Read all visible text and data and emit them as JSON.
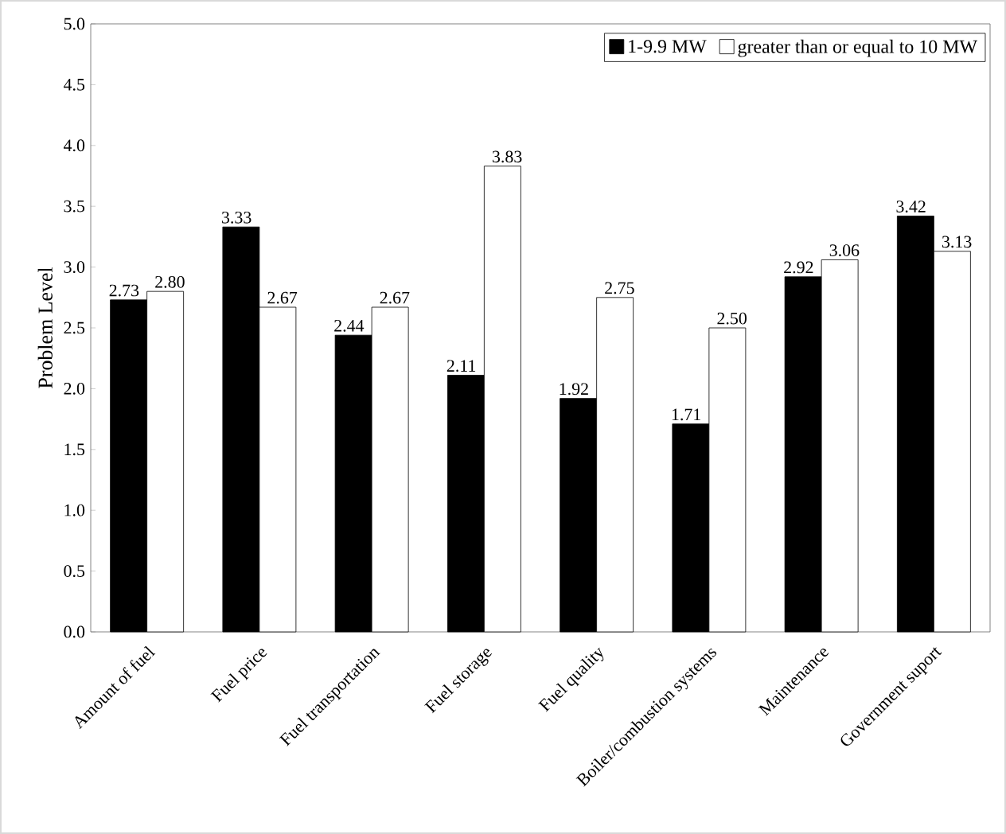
{
  "chart_data": {
    "type": "bar",
    "ylabel": "Problem Level",
    "categories": [
      "Amount of fuel",
      "Fuel price",
      "Fuel transportation",
      "Fuel storage",
      "Fuel quality",
      "Boiler/combustion systems",
      "Maintenance",
      "Government suport"
    ],
    "series": [
      {
        "name": "1-9.9 MW",
        "color": "#000000",
        "values": [
          2.73,
          3.33,
          2.44,
          2.11,
          1.92,
          1.71,
          2.92,
          3.42
        ],
        "value_labels": [
          "2.73",
          "3.33",
          "2.44",
          "2.11",
          "1.92",
          "1.71",
          "2.92",
          "3.42"
        ]
      },
      {
        "name": "greater than or equal to 10 MW",
        "color": "#ffffff",
        "values": [
          2.8,
          2.67,
          2.67,
          3.83,
          2.75,
          2.5,
          3.06,
          3.13
        ],
        "value_labels": [
          "2.80",
          "2.67",
          "2.67",
          "3.83",
          "2.75",
          "2.50",
          "3.06",
          "3.13"
        ]
      }
    ],
    "ylim": [
      0,
      5
    ],
    "yticks": [
      {
        "value": 0,
        "label": "0.0"
      },
      {
        "value": 0.5,
        "label": "0.5"
      },
      {
        "value": 1,
        "label": "1.0"
      },
      {
        "value": 1.5,
        "label": "1.5"
      },
      {
        "value": 2,
        "label": "2.0"
      },
      {
        "value": 2.5,
        "label": "2.5"
      },
      {
        "value": 3,
        "label": "3.0"
      },
      {
        "value": 3.5,
        "label": "3.5"
      },
      {
        "value": 4,
        "label": "4.0"
      },
      {
        "value": 4.5,
        "label": "4.5"
      },
      {
        "value": 5,
        "label": "5.0"
      }
    ],
    "legend": "top right"
  }
}
